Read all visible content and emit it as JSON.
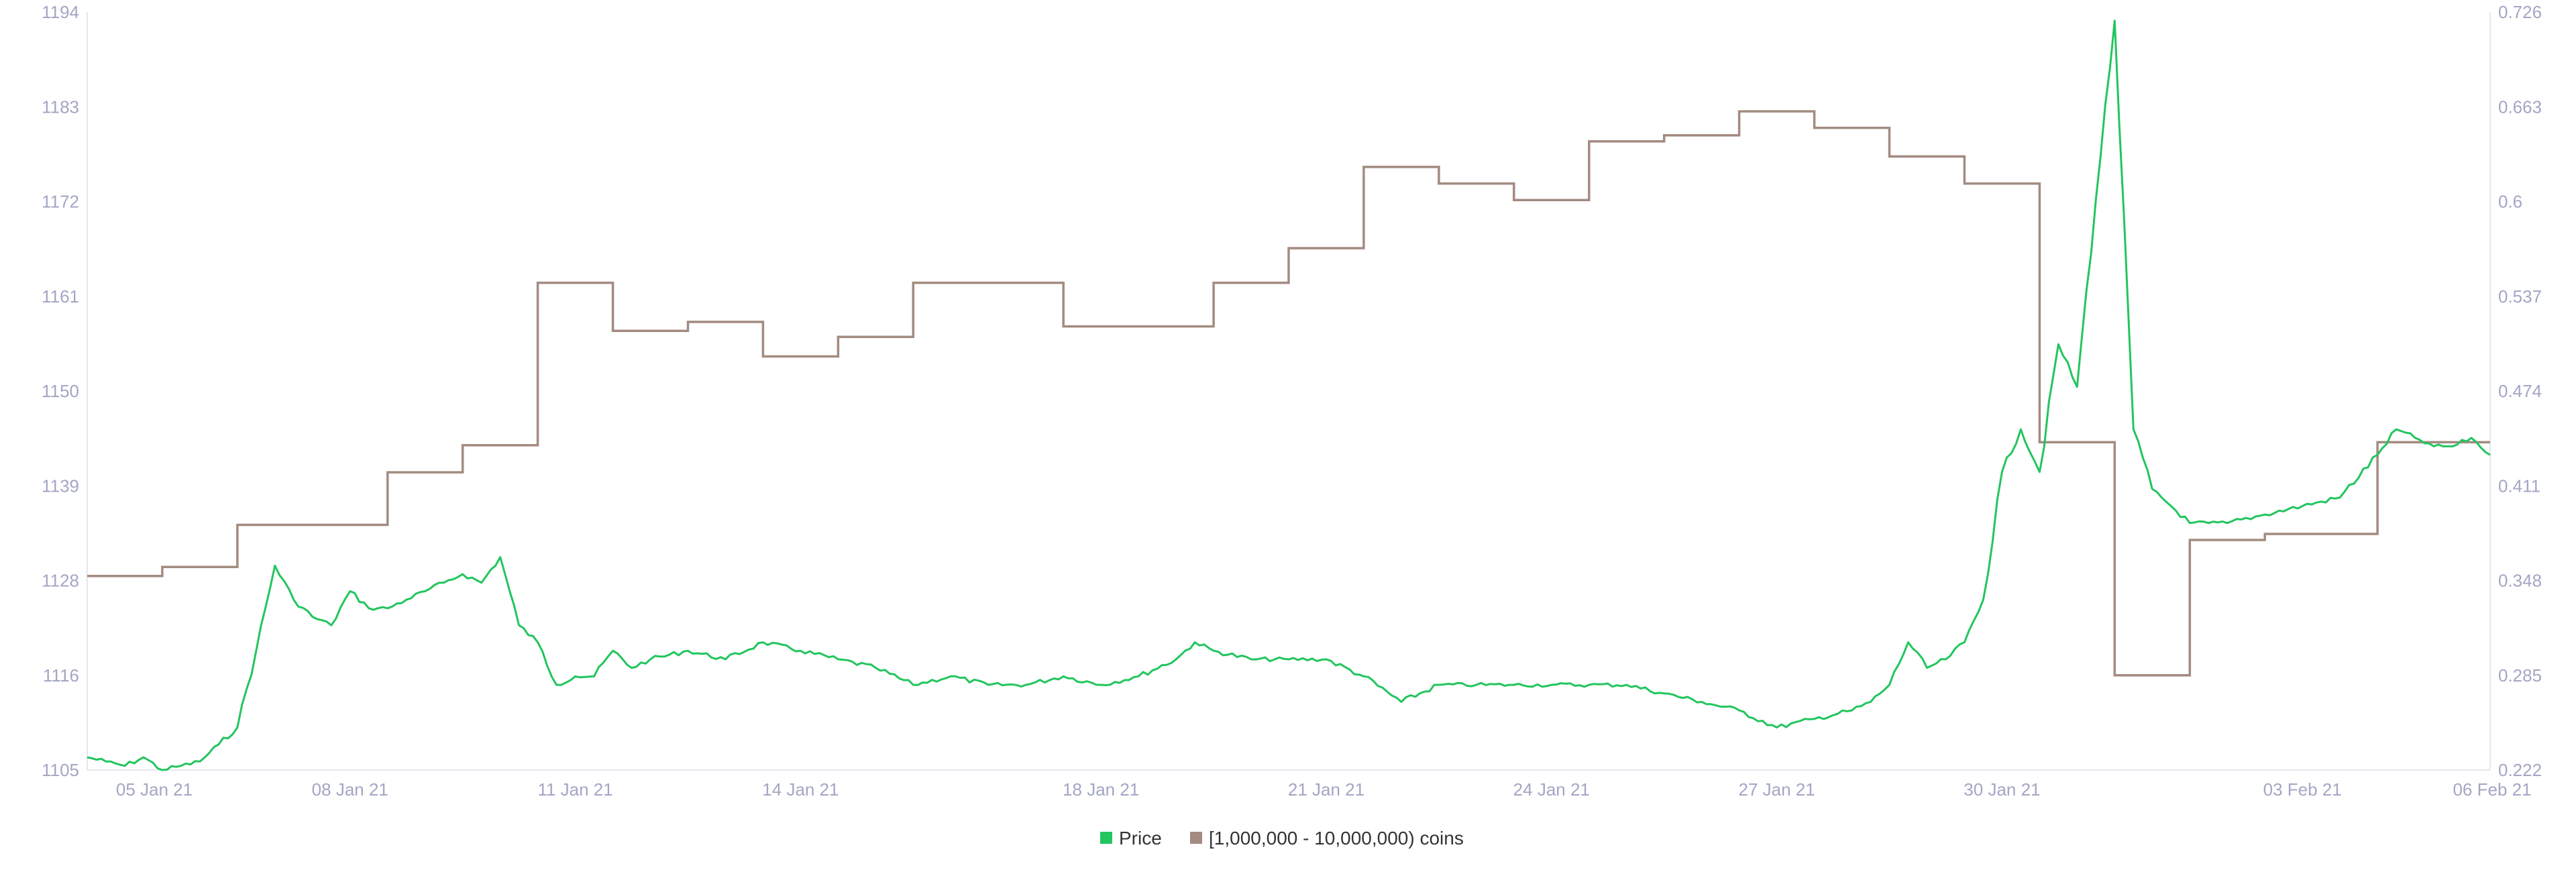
{
  "chart_data": {
    "type": "line",
    "x_ticks": [
      "05 Jan 21",
      "08 Jan 21",
      "11 Jan 21",
      "14 Jan 21",
      "18 Jan 21",
      "21 Jan 21",
      "24 Jan 21",
      "27 Jan 21",
      "30 Jan 21",
      "03 Feb 21",
      "06 Feb 21"
    ],
    "y_left_ticks": [
      "1105",
      "1116",
      "1128",
      "1139",
      "1150",
      "1161",
      "1172",
      "1183",
      "1194"
    ],
    "y_right_ticks": [
      "0.222",
      "0.285",
      "0.348",
      "0.411",
      "0.474",
      "0.537",
      "0.6",
      "0.663",
      "0.726"
    ],
    "y_left_range": [
      1105,
      1194
    ],
    "y_right_range": [
      0.222,
      0.726
    ],
    "grid": false,
    "legend_position": "bottom-center",
    "series": [
      {
        "name": "Price",
        "axis": "left",
        "color": "#22c55e",
        "x": [
          "2021-01-04T12:00",
          "2021-01-04T18:00",
          "2021-01-05T00:00",
          "2021-01-05T06:00",
          "2021-01-05T12:00",
          "2021-01-05T18:00",
          "2021-01-06T00:00",
          "2021-01-06T06:00",
          "2021-01-06T12:00",
          "2021-01-06T18:00",
          "2021-01-07T00:00",
          "2021-01-07T06:00",
          "2021-01-07T12:00",
          "2021-01-07T18:00",
          "2021-01-08T00:00",
          "2021-01-08T06:00",
          "2021-01-08T12:00",
          "2021-01-08T18:00",
          "2021-01-09T00:00",
          "2021-01-09T06:00",
          "2021-01-09T12:00",
          "2021-01-09T18:00",
          "2021-01-10T00:00",
          "2021-01-10T06:00",
          "2021-01-10T12:00",
          "2021-01-10T18:00",
          "2021-01-11T00:00",
          "2021-01-11T06:00",
          "2021-01-11T12:00",
          "2021-01-11T18:00",
          "2021-01-12T00:00",
          "2021-01-12T12:00",
          "2021-01-13T00:00",
          "2021-01-13T12:00",
          "2021-01-14T00:00",
          "2021-01-14T12:00",
          "2021-01-15T00:00",
          "2021-01-15T12:00",
          "2021-01-16T00:00",
          "2021-01-16T12:00",
          "2021-01-17T00:00",
          "2021-01-17T12:00",
          "2021-01-18T00:00",
          "2021-01-18T12:00",
          "2021-01-19T00:00",
          "2021-01-19T06:00",
          "2021-01-19T12:00",
          "2021-01-20T00:00",
          "2021-01-20T12:00",
          "2021-01-21T00:00",
          "2021-01-21T12:00",
          "2021-01-22T00:00",
          "2021-01-22T12:00",
          "2021-01-23T00:00",
          "2021-01-23T12:00",
          "2021-01-24T00:00",
          "2021-01-24T12:00",
          "2021-01-25T00:00",
          "2021-01-25T12:00",
          "2021-01-26T00:00",
          "2021-01-26T12:00",
          "2021-01-27T00:00",
          "2021-01-27T12:00",
          "2021-01-28T00:00",
          "2021-01-28T06:00",
          "2021-01-28T12:00",
          "2021-01-28T18:00",
          "2021-01-29T00:00",
          "2021-01-29T06:00",
          "2021-01-29T12:00",
          "2021-01-29T18:00",
          "2021-01-30T00:00",
          "2021-01-30T06:00",
          "2021-01-30T12:00",
          "2021-01-30T18:00",
          "2021-01-31T00:00",
          "2021-01-31T06:00",
          "2021-01-31T12:00",
          "2021-01-31T18:00",
          "2021-02-01T00:00",
          "2021-02-01T06:00",
          "2021-02-01T12:00",
          "2021-02-01T18:00",
          "2021-02-02T00:00",
          "2021-02-02T12:00",
          "2021-02-03T00:00",
          "2021-02-03T12:00",
          "2021-02-04T00:00",
          "2021-02-04T06:00",
          "2021-02-04T12:00",
          "2021-02-04T18:00",
          "2021-02-05T00:00",
          "2021-02-05T06:00",
          "2021-02-05T12:00"
        ],
        "values": [
          1106.5,
          1106,
          1105.5,
          1106.5,
          1105,
          1105.5,
          1106,
          1108,
          1110,
          1119,
          1129,
          1125,
          1123,
          1122,
          1126,
          1124,
          1124,
          1125,
          1126,
          1127,
          1128,
          1127,
          1130,
          1122,
          1120,
          1115,
          1116,
          1116,
          1119,
          1117,
          1118,
          1119,
          1118,
          1120,
          1119,
          1118,
          1117,
          1115,
          1116,
          1115,
          1115,
          1116,
          1115,
          1116,
          1118,
          1120,
          1119,
          1118,
          1118,
          1118,
          1116,
          1113,
          1115,
          1115,
          1115,
          1115,
          1115,
          1115,
          1114,
          1113,
          1112,
          1110,
          1111,
          1112,
          1113,
          1115,
          1120,
          1117,
          1118,
          1120,
          1125,
          1140,
          1145,
          1140,
          1155,
          1150,
          1172,
          1193,
          1145,
          1138,
          1136,
          1134,
          1134,
          1134,
          1135,
          1136,
          1137,
          1142,
          1145,
          1144,
          1143,
          1143,
          1144,
          1142
        ]
      },
      {
        "name": "[1,000,000 - 10,000,000) coins",
        "axis": "right",
        "color": "#a38b80",
        "x": [
          "2021-01-04T12:00",
          "2021-01-05T12:00",
          "2021-01-06T12:00",
          "2021-01-08T12:00",
          "2021-01-09T12:00",
          "2021-01-10T12:00",
          "2021-01-11T12:00",
          "2021-01-12T12:00",
          "2021-01-13T12:00",
          "2021-01-14T12:00",
          "2021-01-15T12:00",
          "2021-01-17T12:00",
          "2021-01-19T12:00",
          "2021-01-20T12:00",
          "2021-01-21T12:00",
          "2021-01-22T12:00",
          "2021-01-23T12:00",
          "2021-01-24T12:00",
          "2021-01-25T12:00",
          "2021-01-26T12:00",
          "2021-01-27T12:00",
          "2021-01-28T12:00",
          "2021-01-29T12:00",
          "2021-01-30T12:00",
          "2021-01-31T12:00",
          "2021-02-01T12:00",
          "2021-02-02T12:00",
          "2021-02-04T00:00"
        ],
        "values": [
          0.351,
          0.357,
          0.385,
          0.42,
          0.438,
          0.546,
          0.514,
          0.52,
          0.497,
          0.51,
          0.546,
          0.517,
          0.546,
          0.569,
          0.623,
          0.612,
          0.601,
          0.64,
          0.644,
          0.66,
          0.649,
          0.63,
          0.612,
          0.44,
          0.285,
          0.375,
          0.379,
          0.44
        ]
      }
    ]
  }
}
